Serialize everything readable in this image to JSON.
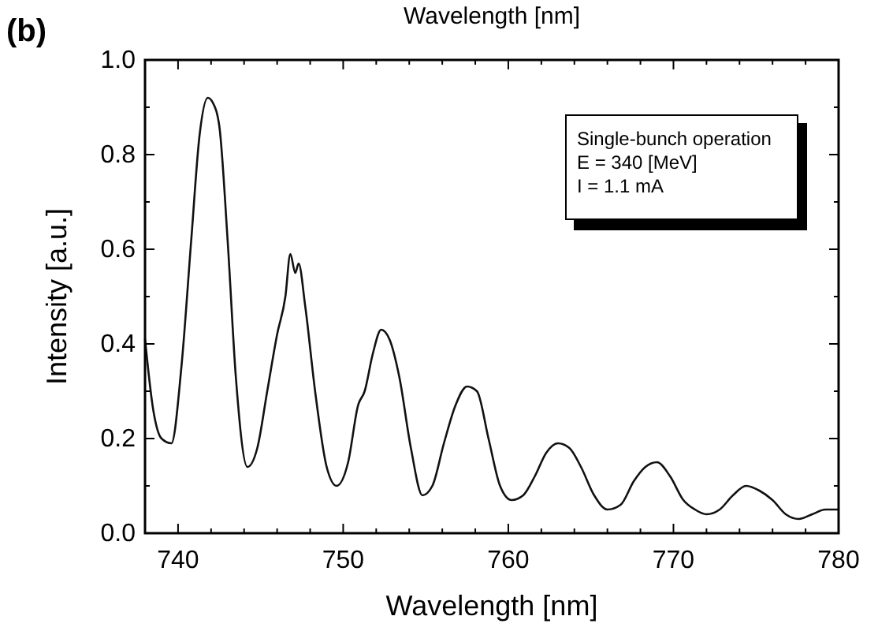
{
  "chart_data": {
    "type": "line",
    "xlabel": "Wavelength [nm]",
    "ylabel": "Intensity [a.u.]",
    "annotations": [
      "(b)",
      "Wavelength [nm]",
      "Single-bunch operation",
      "E = 340 [MeV]",
      "I = 1.1 mA"
    ],
    "xlim": [
      738,
      780
    ],
    "ylim": [
      0,
      1
    ],
    "xticks": [
      740,
      {
        "value": 742,
        "label": null
      },
      {
        "value": 744,
        "label": null
      },
      {
        "value": 746,
        "label": null
      },
      {
        "value": 748,
        "label": null
      },
      750,
      {
        "value": 752,
        "label": null
      },
      {
        "value": 754,
        "label": null
      },
      {
        "value": 756,
        "label": null
      },
      {
        "value": 758,
        "label": null
      },
      760,
      {
        "value": 762,
        "label": null
      },
      {
        "value": 764,
        "label": null
      },
      {
        "value": 766,
        "label": null
      },
      {
        "value": 768,
        "label": null
      },
      770,
      {
        "value": 772,
        "label": null
      },
      {
        "value": 774,
        "label": null
      },
      {
        "value": 776,
        "label": null
      },
      {
        "value": 778,
        "label": null
      },
      780
    ],
    "yticks": [
      {
        "value": 0,
        "label": "0.0"
      },
      {
        "value": 0.1,
        "label": null
      },
      0.2,
      {
        "value": 0.3,
        "label": null
      },
      0.4,
      {
        "value": 0.5,
        "label": null
      },
      0.6,
      {
        "value": 0.7,
        "label": null
      },
      0.8,
      {
        "value": 0.9,
        "label": null
      },
      {
        "value": 1,
        "label": "1.0"
      }
    ],
    "grid": false,
    "marker": "none",
    "line_style": "solid",
    "series": [
      {
        "color": "#111111",
        "x": [
          738,
          738.5,
          739,
          739.6,
          740.2,
          740.8,
          741.3,
          741.8,
          742.1,
          742.5,
          743,
          743.5,
          744.2,
          744.8,
          745.4,
          746,
          746.5,
          746.8,
          747.1,
          747.3,
          747.7,
          748.3,
          749,
          749.6,
          750.3,
          750.9,
          751.3,
          751.8,
          752.3,
          752.8,
          753.4,
          754.1,
          754.8,
          755.4,
          756.1,
          756.8,
          757.5,
          758.1,
          758.8,
          759.5,
          760.2,
          760.9,
          761.6,
          762.3,
          763,
          763.7,
          764.4,
          765.2,
          766,
          766.8,
          767.6,
          768.3,
          769,
          769.8,
          770.6,
          771.3,
          772,
          772.8,
          773.6,
          774.4,
          775.2,
          776,
          776.8,
          777.6,
          778.4,
          779.2,
          780
        ],
        "values": [
          0.41,
          0.26,
          0.2,
          0.19,
          0.35,
          0.62,
          0.84,
          0.92,
          0.91,
          0.86,
          0.62,
          0.33,
          0.14,
          0.18,
          0.3,
          0.42,
          0.5,
          0.59,
          0.55,
          0.57,
          0.48,
          0.3,
          0.14,
          0.1,
          0.15,
          0.27,
          0.3,
          0.38,
          0.43,
          0.41,
          0.33,
          0.18,
          0.08,
          0.1,
          0.19,
          0.27,
          0.31,
          0.3,
          0.2,
          0.1,
          0.07,
          0.08,
          0.12,
          0.17,
          0.19,
          0.18,
          0.14,
          0.08,
          0.05,
          0.06,
          0.11,
          0.14,
          0.15,
          0.12,
          0.07,
          0.05,
          0.04,
          0.05,
          0.08,
          0.1,
          0.09,
          0.07,
          0.04,
          0.03,
          0.04,
          0.05,
          0.05
        ]
      }
    ]
  }
}
